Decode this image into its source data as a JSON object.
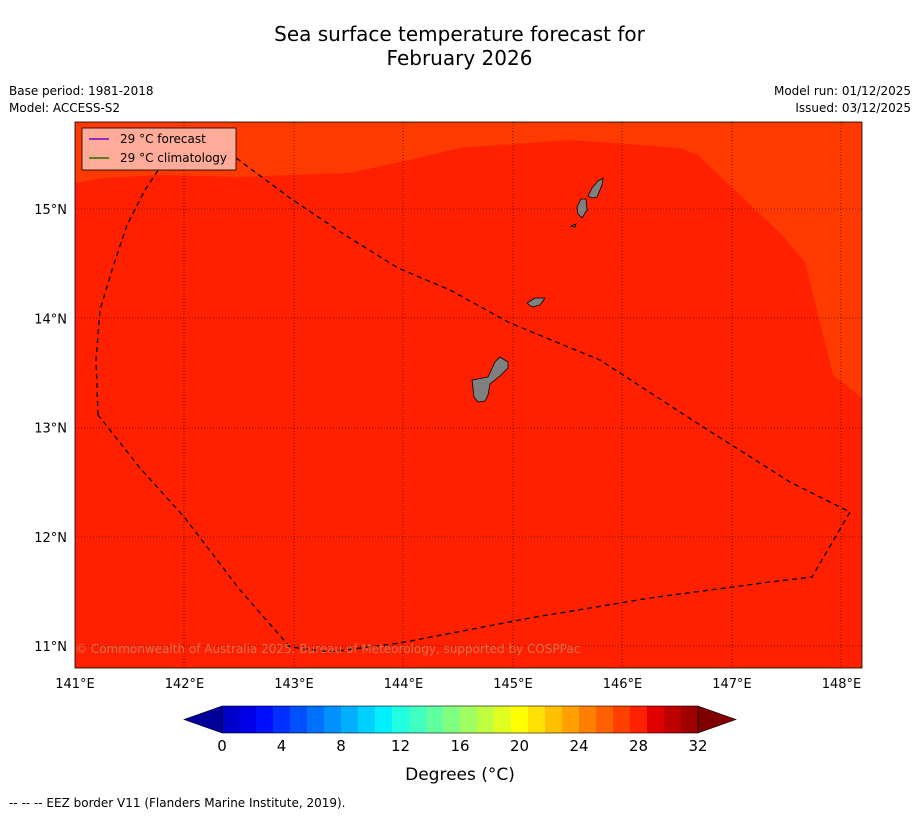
{
  "title": {
    "line1": "Sea surface temperature forecast for",
    "line2": "February 2026"
  },
  "meta": {
    "base_period": "Base period: 1981-2018",
    "model": "Model: ACCESS-S2",
    "model_run": "Model run: 01/12/2025",
    "issued": "Issued: 03/12/2025"
  },
  "map": {
    "lon_labels": [
      "141°E",
      "142°E",
      "143°E",
      "144°E",
      "145°E",
      "146°E",
      "147°E",
      "148°E"
    ],
    "lat_labels": [
      "15°N",
      "14°N",
      "13°N",
      "12°N",
      "11°N"
    ],
    "legend": {
      "forecast": "29 °C  forecast",
      "climatology": "29 °C  climatology"
    },
    "copyright": "© Commonwealth of Australia 2025, Bureau of Meteorology, supported by COSPPac",
    "colors": {
      "main_field": "#ff2000",
      "warm_field": "#ff3a00",
      "land": "#808080",
      "forecast_line": "#8000c0",
      "climatology_line": "#207000"
    }
  },
  "colorbar": {
    "tick_labels": [
      "0",
      "4",
      "8",
      "12",
      "16",
      "20",
      "24",
      "28",
      "32"
    ],
    "label": "Degrees (°C)",
    "colors": [
      "#00009a",
      "#0000c8",
      "#0000e8",
      "#0010ff",
      "#0030ff",
      "#0050ff",
      "#0070ff",
      "#0090ff",
      "#00b0ff",
      "#00d0ff",
      "#00f0ff",
      "#20ffe0",
      "#40ffc0",
      "#60ffa0",
      "#80ff80",
      "#a0ff60",
      "#c0ff40",
      "#e0ff20",
      "#ffff00",
      "#ffe000",
      "#ffc000",
      "#ffa000",
      "#ff8000",
      "#ff6000",
      "#ff4000",
      "#ff2000",
      "#e00000",
      "#c00000",
      "#a00000",
      "#800000"
    ]
  },
  "footnote": "-- -- -- EEZ border V11 (Flanders Marine Institute, 2019)."
}
